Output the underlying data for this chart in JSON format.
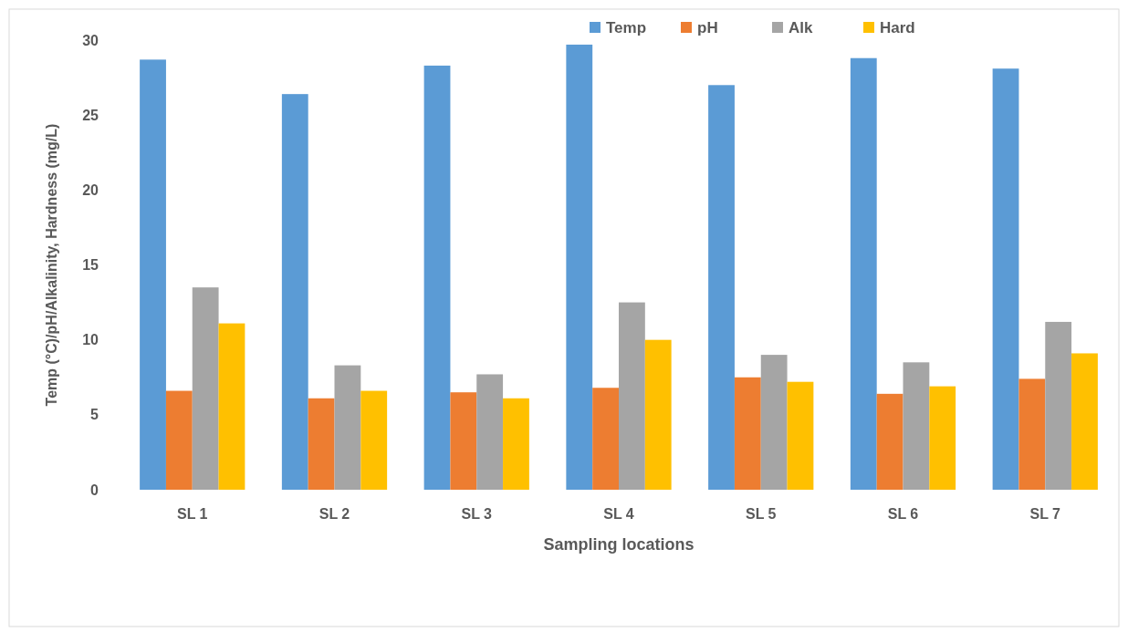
{
  "chart_data": {
    "type": "bar",
    "xlabel": "Sampling locations",
    "ylabel": "Temp (°C)/pH/Alkalinity, Hardness (mg/L)",
    "categories": [
      "SL 1",
      "SL 2",
      "SL 3",
      "SL 4",
      "SL 5",
      "SL 6",
      "SL 7"
    ],
    "series": [
      {
        "name": "Temp",
        "color": "#5b9bd5",
        "values": [
          28.7,
          26.4,
          28.3,
          29.7,
          27.0,
          28.8,
          28.1
        ]
      },
      {
        "name": "pH",
        "color": "#ed7d31",
        "values": [
          6.6,
          6.1,
          6.5,
          6.8,
          7.5,
          6.4,
          7.4
        ]
      },
      {
        "name": "Alk",
        "color": "#a5a5a5",
        "values": [
          13.5,
          8.3,
          7.7,
          12.5,
          9.0,
          8.5,
          11.2
        ]
      },
      {
        "name": "Hard",
        "color": "#ffc000",
        "values": [
          11.1,
          6.6,
          6.1,
          10.0,
          7.2,
          6.9,
          9.1
        ]
      }
    ],
    "ylim": [
      0,
      30
    ],
    "yticks": [
      0,
      5,
      10,
      15,
      20,
      25,
      30
    ],
    "grid": false,
    "legend": "top right"
  }
}
